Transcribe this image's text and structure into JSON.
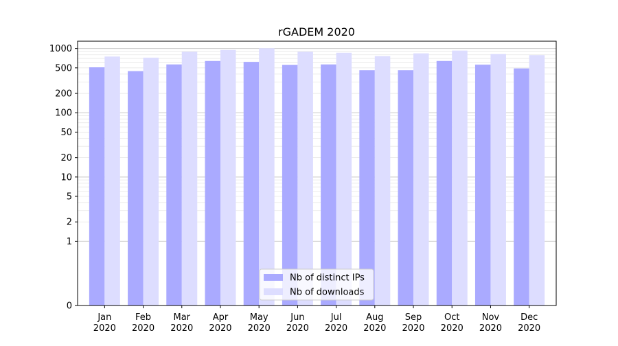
{
  "chart_data": {
    "type": "bar",
    "title": "rGADEM 2020",
    "xlabel": "",
    "ylabel": "",
    "y_scale": "symlog",
    "ylim": [
      0,
      1300
    ],
    "y_ticks": [
      0,
      1,
      2,
      5,
      10,
      20,
      50,
      100,
      200,
      500,
      1000
    ],
    "categories": [
      "Jan\n2020",
      "Feb\n2020",
      "Mar\n2020",
      "Apr\n2020",
      "May\n2020",
      "Jun\n2020",
      "Jul\n2020",
      "Aug\n2020",
      "Sep\n2020",
      "Oct\n2020",
      "Nov\n2020",
      "Dec\n2020"
    ],
    "series": [
      {
        "name": "Nb of distinct IPs",
        "color": "#aaaaff",
        "values": [
          510,
          445,
          565,
          640,
          620,
          555,
          565,
          460,
          460,
          640,
          560,
          490
        ]
      },
      {
        "name": "Nb of downloads",
        "color": "#ddddff",
        "values": [
          750,
          720,
          890,
          950,
          1010,
          890,
          860,
          760,
          840,
          930,
          820,
          790
        ]
      }
    ],
    "legend_position": "lower-center",
    "grid": true
  }
}
